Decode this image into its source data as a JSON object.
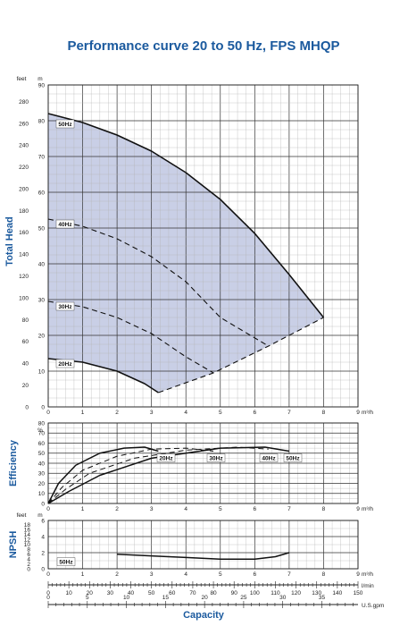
{
  "title": "Performance curve 20 to 50 Hz, FPS MHQP",
  "colors": {
    "title": "#1b5a9e",
    "fill": "#c9cfe6",
    "curve": "#111111"
  },
  "chart_data": [
    {
      "id": "head",
      "type": "line",
      "ylabel": "Total Head",
      "yunit_left": "feet",
      "yunit_right": "m",
      "xunit": "m³/h",
      "xlim": [
        0,
        9
      ],
      "ylim": [
        0,
        90
      ],
      "xticks": [
        0,
        1,
        2,
        3,
        4,
        5,
        6,
        7,
        8,
        9
      ],
      "yticks_m": [
        0,
        10,
        20,
        30,
        40,
        50,
        60,
        70,
        80,
        90
      ],
      "yticks_feet": [
        0,
        20,
        40,
        60,
        80,
        100,
        120,
        140,
        160,
        180,
        200,
        220,
        240,
        260,
        280
      ],
      "feet_per_m": 3.281,
      "series": [
        {
          "name": "50Hz",
          "style": "solid",
          "x": [
            0,
            1,
            2,
            3,
            4,
            5,
            6,
            7,
            8
          ],
          "y": [
            82,
            79.5,
            76,
            71.5,
            65.5,
            58,
            48.5,
            37,
            25
          ]
        },
        {
          "name": "40Hz",
          "style": "dashed",
          "x": [
            0,
            1,
            2,
            3,
            4,
            5,
            6.4
          ],
          "y": [
            52.5,
            50.5,
            47,
            42,
            35,
            25,
            17
          ]
        },
        {
          "name": "30Hz",
          "style": "dashed",
          "x": [
            0,
            1,
            2,
            3,
            4,
            4.8
          ],
          "y": [
            29.5,
            28,
            25,
            20.5,
            14,
            9.5
          ]
        },
        {
          "name": "20Hz",
          "style": "solid",
          "x": [
            0,
            1,
            2,
            2.8,
            3.2
          ],
          "y": [
            13.5,
            12.5,
            10,
            6.5,
            4
          ]
        },
        {
          "name": "",
          "style": "dashed",
          "x": [
            3.2,
            4.8,
            6.4,
            8
          ],
          "y": [
            4,
            9.5,
            17,
            25
          ]
        }
      ]
    },
    {
      "id": "efficiency",
      "type": "line",
      "ylabel": "Efficiency",
      "yunit": "%",
      "xunit": "m³/h",
      "xlim": [
        0,
        9
      ],
      "ylim": [
        0,
        80
      ],
      "xticks": [
        0,
        1,
        2,
        3,
        4,
        5,
        6,
        7,
        8,
        9
      ],
      "yticks": [
        0,
        10,
        20,
        30,
        40,
        50,
        60,
        70,
        80
      ],
      "series": [
        {
          "name": "20Hz",
          "style": "solid",
          "x": [
            0,
            0.3,
            0.8,
            1.5,
            2.2,
            2.8,
            3.2
          ],
          "y": [
            0,
            20,
            38,
            50,
            55,
            56,
            52
          ]
        },
        {
          "name": "30Hz",
          "style": "dashed",
          "x": [
            0,
            0.4,
            1,
            2,
            3,
            4,
            4.8
          ],
          "y": [
            0,
            16,
            33,
            47,
            54,
            55,
            52
          ]
        },
        {
          "name": "40Hz",
          "style": "dashed",
          "x": [
            0,
            0.5,
            1.2,
            2.5,
            4,
            5.5,
            6.4
          ],
          "y": [
            0,
            14,
            30,
            45,
            53,
            56,
            54
          ]
        },
        {
          "name": "50Hz",
          "style": "solid",
          "x": [
            0,
            0.6,
            1.5,
            3,
            5,
            6.3,
            7
          ],
          "y": [
            0,
            12,
            28,
            45,
            55,
            56,
            52
          ]
        }
      ]
    },
    {
      "id": "npsh",
      "type": "line",
      "ylabel": "NPSH",
      "yunit_left": "feet",
      "yunit_right": "m",
      "xunit": "m³/h",
      "xlim": [
        0,
        9
      ],
      "ylim": [
        0,
        6
      ],
      "xticks": [
        0,
        1,
        2,
        3,
        4,
        5,
        6,
        7,
        8,
        9
      ],
      "yticks_m": [
        0,
        2,
        4,
        6
      ],
      "yticks_feet": [
        0,
        2,
        4,
        6,
        8,
        10,
        12,
        14,
        16,
        18
      ],
      "feet_per_m": 3.281,
      "series": [
        {
          "name": "50Hz",
          "style": "solid",
          "x": [
            2,
            3,
            4,
            5,
            6,
            6.6,
            7
          ],
          "y": [
            1.8,
            1.6,
            1.4,
            1.2,
            1.2,
            1.5,
            2
          ]
        }
      ]
    }
  ],
  "capacity_axes": {
    "label": "Capacity",
    "lmin": {
      "unit": "l/min",
      "max": 150,
      "ticks": [
        0,
        10,
        20,
        30,
        40,
        50,
        60,
        70,
        80,
        90,
        100,
        110,
        120,
        130,
        140,
        150
      ]
    },
    "usgpm": {
      "unit": "U.S.gpm",
      "max": 40,
      "ticks": [
        0,
        5,
        10,
        15,
        20,
        25,
        30,
        35
      ]
    }
  }
}
